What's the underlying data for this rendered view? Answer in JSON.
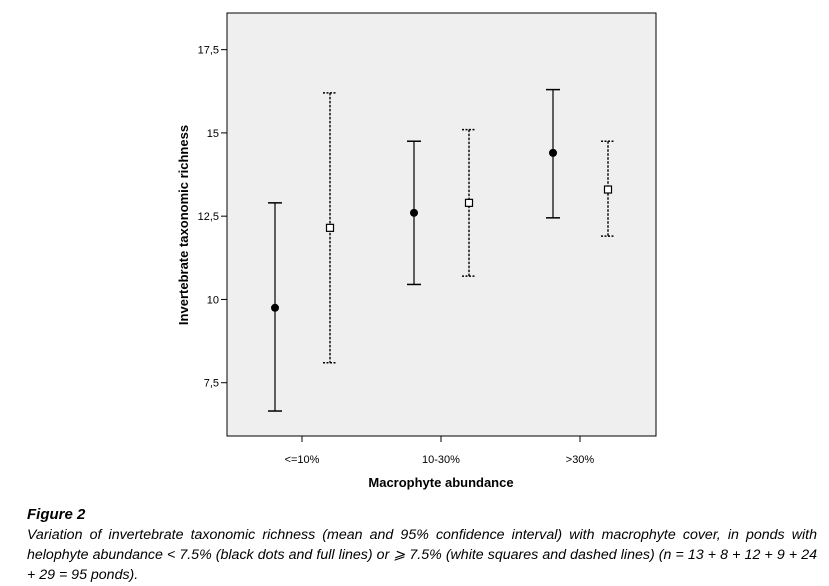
{
  "chart_data": {
    "type": "errorbar",
    "xlabel": "Macrophyte abundance",
    "ylabel": "Invertebrate taxonomic richness",
    "categories": [
      "<=10%",
      "10-30%",
      ">30%"
    ],
    "ylim": [
      5.9,
      18.6
    ],
    "yticks": [
      7.5,
      10,
      12.5,
      15,
      17.5
    ],
    "ytick_labels": [
      "7,5",
      "10",
      "12,5",
      "15",
      "17,5"
    ],
    "grid": false,
    "series": [
      {
        "marker": "black dot",
        "line_style": "solid",
        "mean": [
          9.75,
          12.6,
          14.4
        ],
        "lower": [
          6.65,
          10.45,
          12.45
        ],
        "upper": [
          12.9,
          14.75,
          16.3
        ]
      },
      {
        "marker": "white square",
        "line_style": "dashed",
        "mean": [
          12.15,
          12.9,
          13.3
        ],
        "lower": [
          8.1,
          10.7,
          11.9
        ],
        "upper": [
          16.2,
          15.1,
          14.75
        ]
      }
    ],
    "colors": {
      "plot_background": "#efefef",
      "ink": "#000000"
    }
  },
  "caption": {
    "label": "Figure 2",
    "text": "Variation of invertebrate taxonomic richness (mean and 95% confidence interval) with macrophyte cover, in ponds with helophyte abundance < 7.5% (black dots and full lines) or ⩾ 7.5% (white squares and dashed lines) (n = 13 + 8 + 12 + 9 + 24 + 29 = 95 ponds)."
  }
}
